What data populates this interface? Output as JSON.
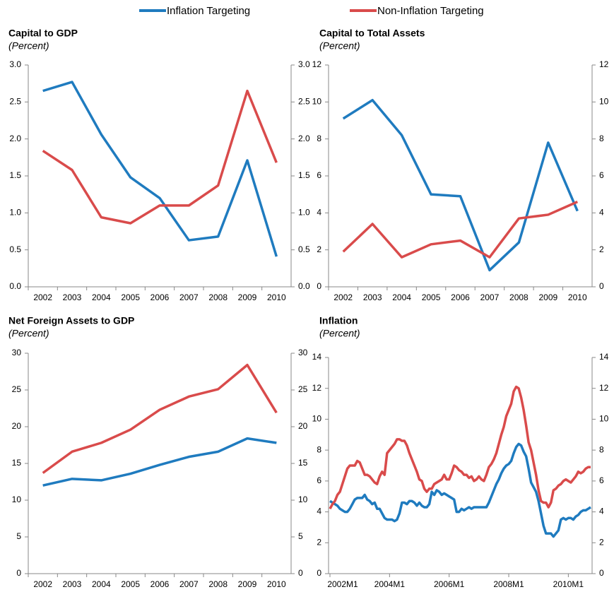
{
  "legend": [
    {
      "name": "Inflation Targeting",
      "color": "#1f7bbf"
    },
    {
      "name": "Non-Inflation Targeting",
      "color": "#d94b4b"
    }
  ],
  "chart_data": [
    {
      "type": "line",
      "title": "Capital to GDP",
      "subtitle": "(Percent)",
      "categories": [
        "2002",
        "2003",
        "2004",
        "2005",
        "2006",
        "2007",
        "2008",
        "2009",
        "2010"
      ],
      "series": [
        {
          "color": "#1f7bbf",
          "values": [
            2.65,
            2.77,
            2.06,
            1.48,
            1.2,
            0.63,
            0.68,
            1.71,
            0.41
          ]
        },
        {
          "color": "#d94b4b",
          "values": [
            1.84,
            1.58,
            0.94,
            0.86,
            1.1,
            1.1,
            1.37,
            2.65,
            1.68
          ]
        }
      ],
      "ylim": [
        0,
        3
      ],
      "yticks": [
        {
          "value": 0,
          "label": "0.0"
        },
        {
          "value": 0.5,
          "label": "0.5"
        },
        {
          "value": 1,
          "label": "1.0"
        },
        {
          "value": 1.5,
          "label": "1.5"
        },
        {
          "value": 2,
          "label": "2.0"
        },
        {
          "value": 2.5,
          "label": "2.5"
        },
        {
          "value": 3,
          "label": "3.0"
        }
      ],
      "y2lim": [
        0,
        3
      ],
      "y2ticks": [
        {
          "value": 0,
          "label": "0.0"
        },
        {
          "value": 0.5,
          "label": "0.5"
        },
        {
          "value": 1,
          "label": "1.0"
        },
        {
          "value": 1.5,
          "label": "1.5"
        },
        {
          "value": 2,
          "label": "2.0"
        },
        {
          "value": 2.5,
          "label": "2.5"
        },
        {
          "value": 3,
          "label": "3.0"
        }
      ]
    },
    {
      "type": "line",
      "title": "Capital to Total Assets",
      "subtitle": "(Percent)",
      "categories": [
        "2002",
        "2003",
        "2004",
        "2005",
        "2006",
        "2007",
        "2008",
        "2009",
        "2010"
      ],
      "series": [
        {
          "color": "#1f7bbf",
          "values": [
            9.1,
            10.1,
            8.2,
            5.0,
            4.9,
            0.9,
            2.4,
            7.8,
            4.1
          ]
        },
        {
          "color": "#d94b4b",
          "values": [
            1.9,
            3.4,
            1.6,
            2.3,
            2.5,
            1.6,
            3.7,
            3.9,
            4.6
          ]
        }
      ],
      "ylim": [
        0,
        12
      ],
      "yticks": [
        0,
        2,
        4,
        6,
        8,
        10,
        12
      ],
      "y2lim": [
        0,
        12
      ],
      "y2ticks": [
        0,
        2,
        4,
        6,
        8,
        10,
        12
      ]
    },
    {
      "type": "line",
      "title": "Net Foreign Assets to GDP",
      "subtitle": "(Percent)",
      "categories": [
        "2002",
        "2003",
        "2004",
        "2005",
        "2006",
        "2007",
        "2008",
        "2009",
        "2010"
      ],
      "series": [
        {
          "color": "#1f7bbf",
          "values": [
            12.0,
            12.9,
            12.7,
            13.6,
            14.8,
            15.9,
            16.6,
            18.4,
            17.8
          ]
        },
        {
          "color": "#d94b4b",
          "values": [
            13.7,
            16.6,
            17.8,
            19.6,
            22.3,
            24.1,
            25.1,
            28.4,
            21.9
          ]
        }
      ],
      "ylim": [
        0,
        30
      ],
      "yticks": [
        0,
        5,
        10,
        15,
        20,
        25,
        30
      ],
      "y2lim": [
        0,
        30
      ],
      "y2ticks": [
        0,
        5,
        10,
        15,
        20,
        25,
        30
      ]
    },
    {
      "type": "line",
      "title": "Inflation",
      "subtitle": "(Percent)",
      "categories": [
        "2002M1",
        null,
        null,
        null,
        null,
        null,
        null,
        null,
        null,
        null,
        null,
        null,
        null,
        null,
        null,
        null,
        null,
        null,
        null,
        null,
        null,
        null,
        null,
        null,
        "2004M1",
        null,
        null,
        null,
        null,
        null,
        null,
        null,
        null,
        null,
        null,
        null,
        null,
        null,
        null,
        null,
        null,
        null,
        null,
        null,
        null,
        null,
        null,
        null,
        "2006M1",
        null,
        null,
        null,
        null,
        null,
        null,
        null,
        null,
        null,
        null,
        null,
        null,
        null,
        null,
        null,
        null,
        null,
        null,
        null,
        null,
        null,
        null,
        null,
        "2008M1",
        null,
        null,
        null,
        null,
        null,
        null,
        null,
        null,
        null,
        null,
        null,
        null,
        null,
        null,
        null,
        null,
        null,
        null,
        null,
        null,
        null,
        null,
        null,
        "2010M1",
        null,
        null,
        null,
        null,
        null,
        null,
        null,
        null,
        null
      ],
      "series": [
        {
          "color": "#1f7bbf",
          "values": [
            4.7,
            4.6,
            4.5,
            4.4,
            4.2,
            4.1,
            4.0,
            4.0,
            4.2,
            4.5,
            4.8,
            4.9,
            4.9,
            4.9,
            5.1,
            4.8,
            4.7,
            4.5,
            4.6,
            4.2,
            4.2,
            3.9,
            3.6,
            3.5,
            3.5,
            3.5,
            3.4,
            3.5,
            3.9,
            4.6,
            4.6,
            4.5,
            4.7,
            4.7,
            4.6,
            4.4,
            4.6,
            4.4,
            4.3,
            4.3,
            4.5,
            5.3,
            5.1,
            5.4,
            5.3,
            5.1,
            5.2,
            5.1,
            5.0,
            4.9,
            4.8,
            4.0,
            4.0,
            4.2,
            4.1,
            4.2,
            4.3,
            4.2,
            4.3,
            4.3,
            4.3,
            4.3,
            4.3,
            4.3,
            4.6,
            5.0,
            5.4,
            5.8,
            6.1,
            6.5,
            6.8,
            7.0,
            7.1,
            7.3,
            7.8,
            8.2,
            8.4,
            8.3,
            7.9,
            7.6,
            6.8,
            5.9,
            5.6,
            5.3,
            4.7,
            3.9,
            3.1,
            2.6,
            2.6,
            2.6,
            2.4,
            2.6,
            2.8,
            3.5,
            3.6,
            3.5,
            3.6,
            3.6,
            3.5,
            3.7,
            3.8,
            4.0,
            4.1,
            4.1,
            4.2,
            4.3
          ]
        },
        {
          "color": "#d94b4b",
          "values": [
            4.2,
            4.5,
            4.7,
            5.1,
            5.3,
            5.8,
            6.3,
            6.8,
            7.0,
            7.0,
            7.0,
            7.3,
            7.2,
            6.8,
            6.4,
            6.4,
            6.3,
            6.1,
            5.9,
            5.8,
            6.3,
            6.6,
            6.4,
            7.8,
            8.0,
            8.2,
            8.4,
            8.7,
            8.7,
            8.6,
            8.6,
            8.3,
            7.8,
            7.4,
            7.0,
            6.6,
            6.1,
            6.0,
            5.5,
            5.3,
            5.5,
            5.5,
            5.8,
            5.9,
            6.0,
            6.1,
            6.4,
            6.1,
            6.1,
            6.5,
            7.0,
            6.9,
            6.7,
            6.6,
            6.4,
            6.4,
            6.2,
            6.3,
            6.0,
            6.1,
            6.3,
            6.1,
            6.0,
            6.4,
            6.9,
            7.1,
            7.4,
            7.8,
            8.4,
            9.0,
            9.5,
            10.2,
            10.6,
            11.0,
            11.8,
            12.1,
            12.0,
            11.4,
            10.6,
            9.6,
            8.5,
            8.0,
            7.2,
            6.4,
            5.4,
            4.7,
            4.6,
            4.6,
            4.3,
            4.6,
            5.4,
            5.5,
            5.7,
            5.8,
            6.0,
            6.1,
            6.0,
            5.9,
            6.1,
            6.3,
            6.6,
            6.5,
            6.6,
            6.8,
            6.9,
            6.9
          ]
        }
      ],
      "ylim": [
        0,
        14
      ],
      "yticks": [
        0,
        2,
        4,
        6,
        8,
        10,
        12,
        14
      ],
      "y2lim": [
        0,
        14
      ],
      "y2ticks": [
        0,
        2,
        4,
        6,
        8,
        10,
        12,
        14
      ]
    }
  ]
}
